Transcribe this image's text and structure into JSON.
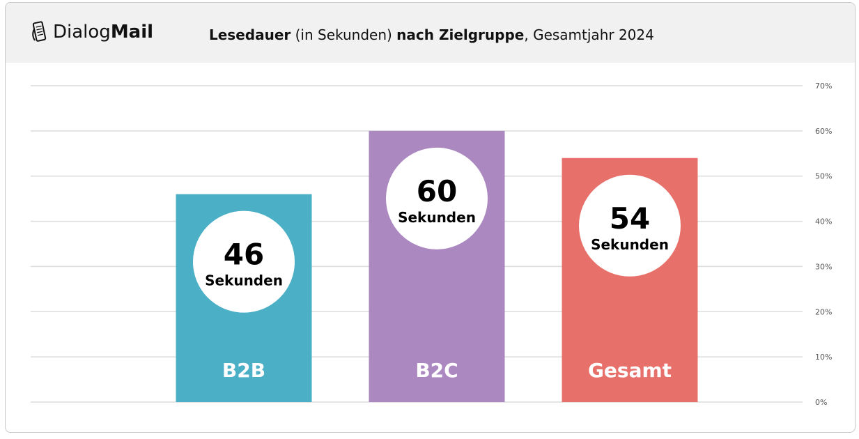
{
  "logo": {
    "text_regular": "Dialog",
    "text_bold": "Mail"
  },
  "title": {
    "part1_bold": "Lesedauer",
    "part2": " (in Sekunden) ",
    "part3_bold": "nach Zielgruppe",
    "part4": ", Gesamtjahr 2024"
  },
  "chart_data": {
    "type": "bar",
    "title": "Lesedauer (in Sekunden) nach Zielgruppe, Gesamtjahr 2024",
    "categories": [
      "B2B",
      "B2C",
      "Gesamt"
    ],
    "values": [
      46,
      60,
      54
    ],
    "value_labels": [
      "46",
      "60",
      "54"
    ],
    "unit_label": "Sekunden",
    "colors": [
      "#4bafc6",
      "#ab88c0",
      "#e8706b"
    ],
    "ylim": [
      0,
      70
    ],
    "yticks": [
      "0%",
      "10%",
      "20%",
      "30%",
      "40%",
      "50%",
      "60%",
      "70%"
    ],
    "y_axis_position": "right",
    "grid": true
  }
}
